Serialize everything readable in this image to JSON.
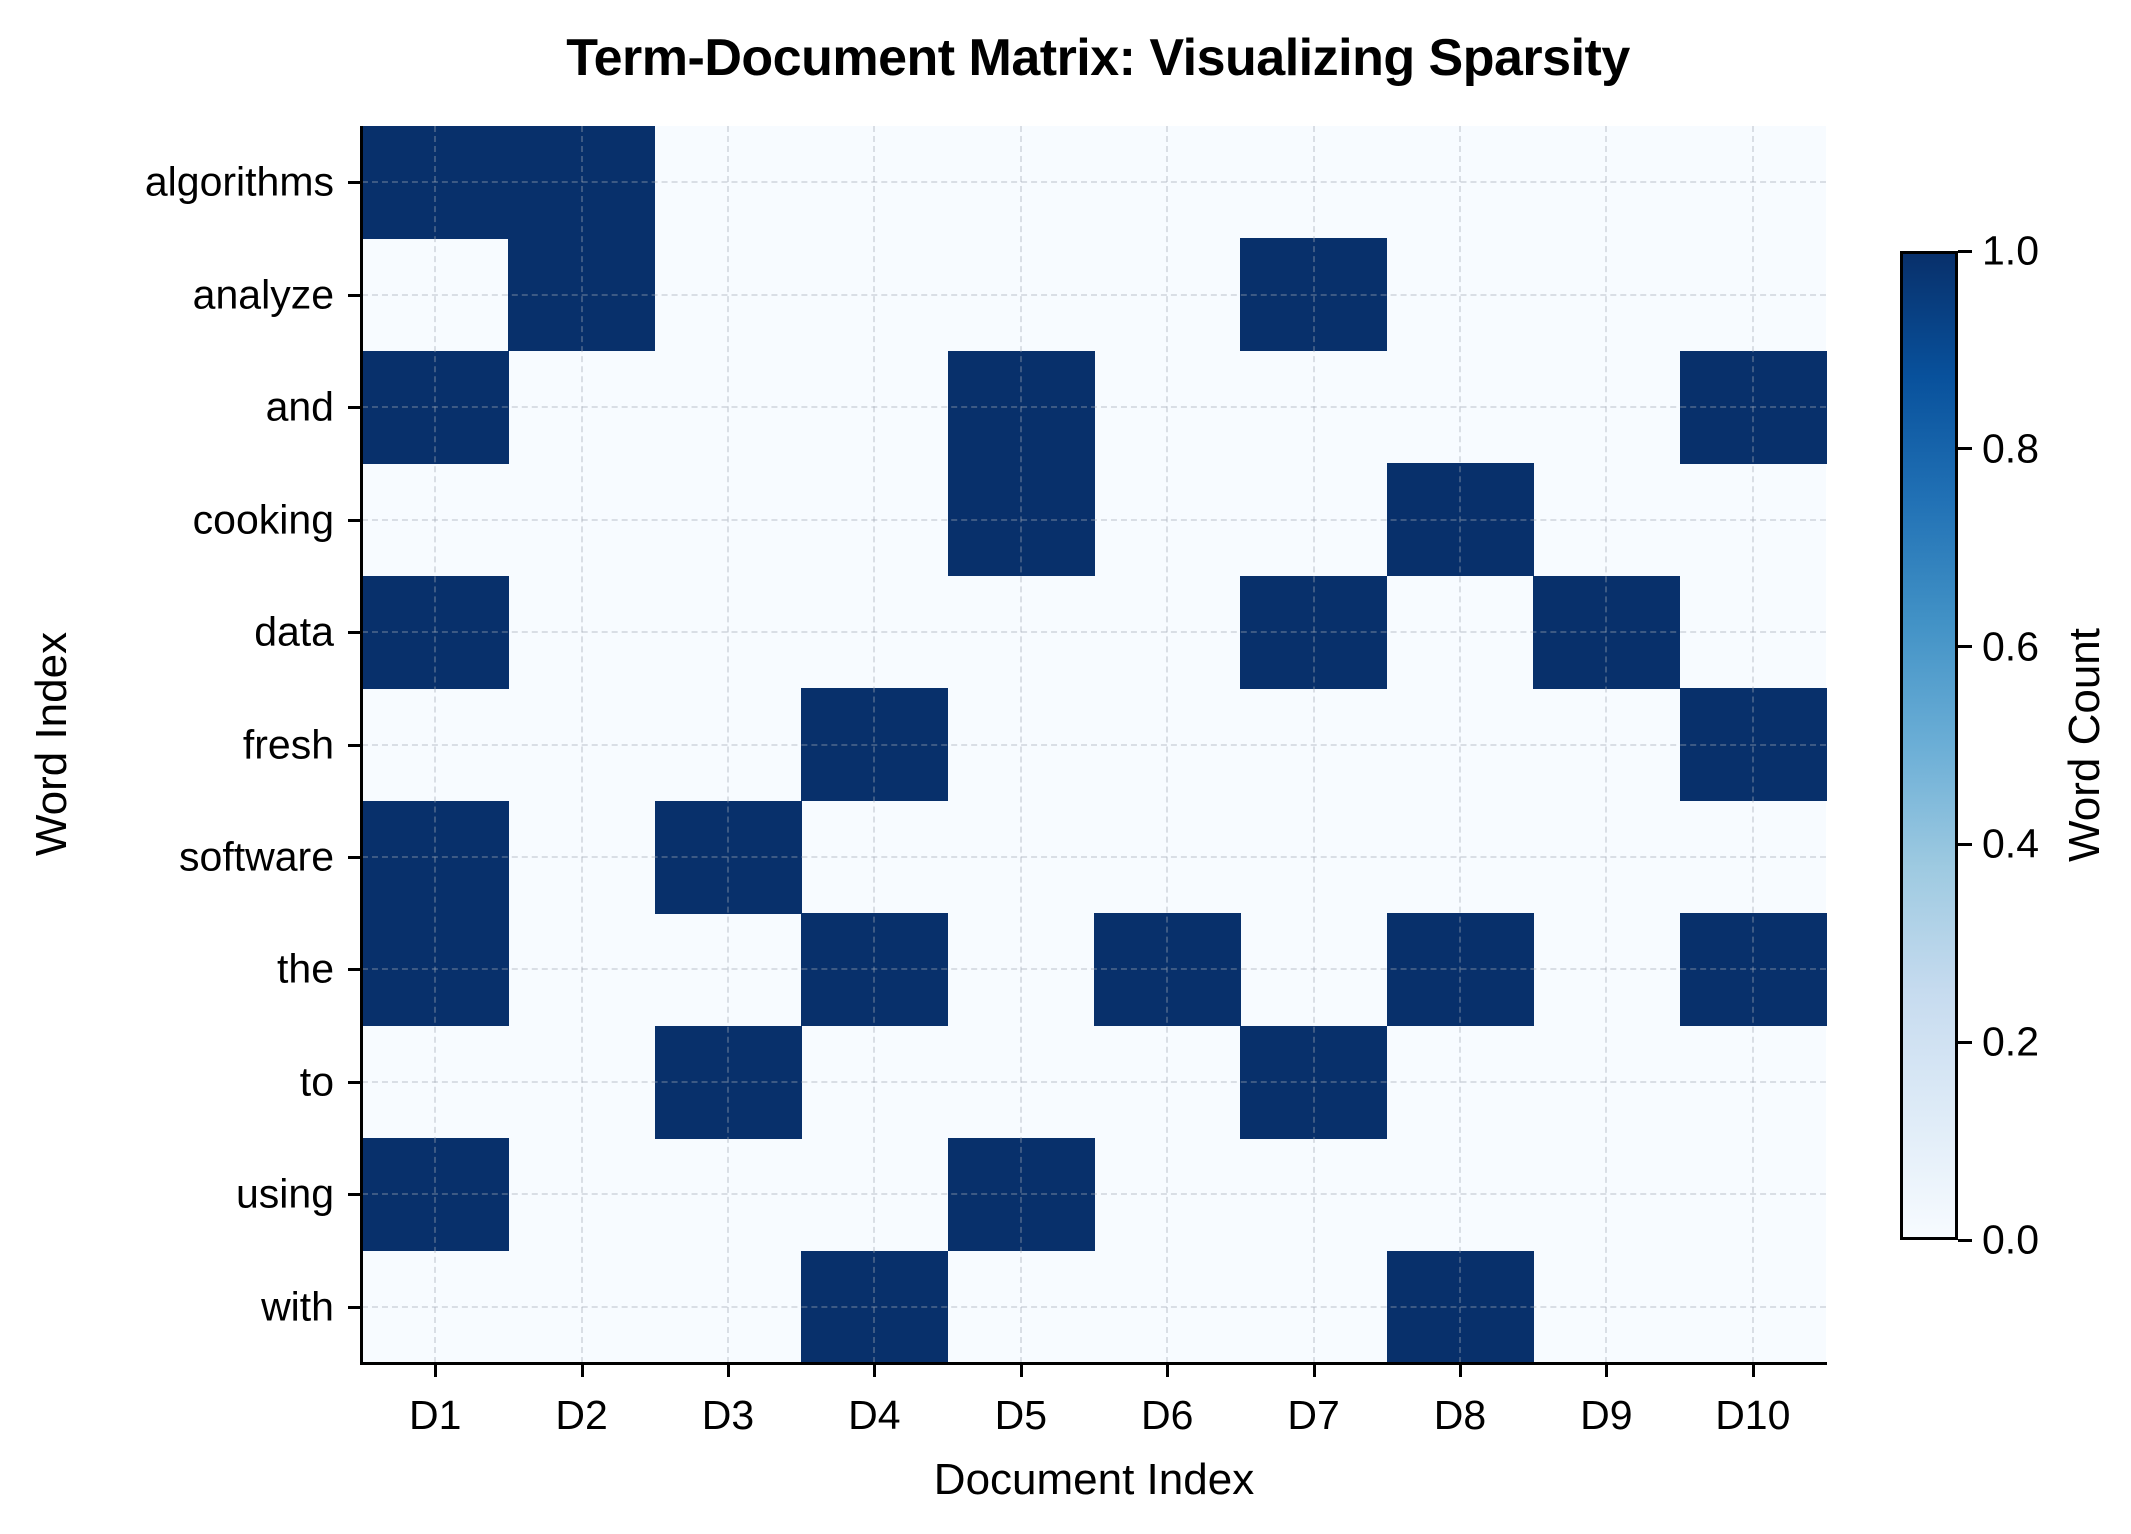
{
  "chart_data": {
    "type": "heatmap",
    "title": "Term-Document Matrix: Visualizing Sparsity",
    "xlabel": "Document Index",
    "ylabel": "Word Index",
    "x_categories": [
      "D1",
      "D2",
      "D3",
      "D4",
      "D5",
      "D6",
      "D7",
      "D8",
      "D9",
      "D10"
    ],
    "y_categories": [
      "algorithms",
      "analyze",
      "and",
      "cooking",
      "data",
      "fresh",
      "software",
      "the",
      "to",
      "using",
      "with"
    ],
    "values": [
      [
        1,
        1,
        0,
        0,
        0,
        0,
        0,
        0,
        0,
        0
      ],
      [
        0,
        1,
        0,
        0,
        0,
        0,
        1,
        0,
        0,
        0
      ],
      [
        1,
        0,
        0,
        0,
        1,
        0,
        0,
        0,
        0,
        1
      ],
      [
        0,
        0,
        0,
        0,
        1,
        0,
        0,
        1,
        0,
        0
      ],
      [
        1,
        0,
        0,
        0,
        0,
        0,
        1,
        0,
        1,
        0
      ],
      [
        0,
        0,
        0,
        1,
        0,
        0,
        0,
        0,
        0,
        1
      ],
      [
        1,
        0,
        1,
        0,
        0,
        0,
        0,
        0,
        0,
        0
      ],
      [
        1,
        0,
        0,
        1,
        0,
        1,
        0,
        1,
        0,
        1
      ],
      [
        0,
        0,
        1,
        0,
        0,
        0,
        1,
        0,
        0,
        0
      ],
      [
        1,
        0,
        0,
        0,
        1,
        0,
        0,
        0,
        0,
        0
      ],
      [
        0,
        0,
        0,
        1,
        0,
        0,
        0,
        1,
        0,
        0
      ]
    ],
    "colorbar": {
      "label": "Word Count",
      "range": [
        0.0,
        1.0
      ],
      "ticks": [
        "0.0",
        "0.2",
        "0.4",
        "0.6",
        "0.8",
        "1.0"
      ],
      "colormap": "Blues"
    },
    "colors": {
      "low": "#f7fbff",
      "high": "#08306b"
    },
    "grid": true
  }
}
